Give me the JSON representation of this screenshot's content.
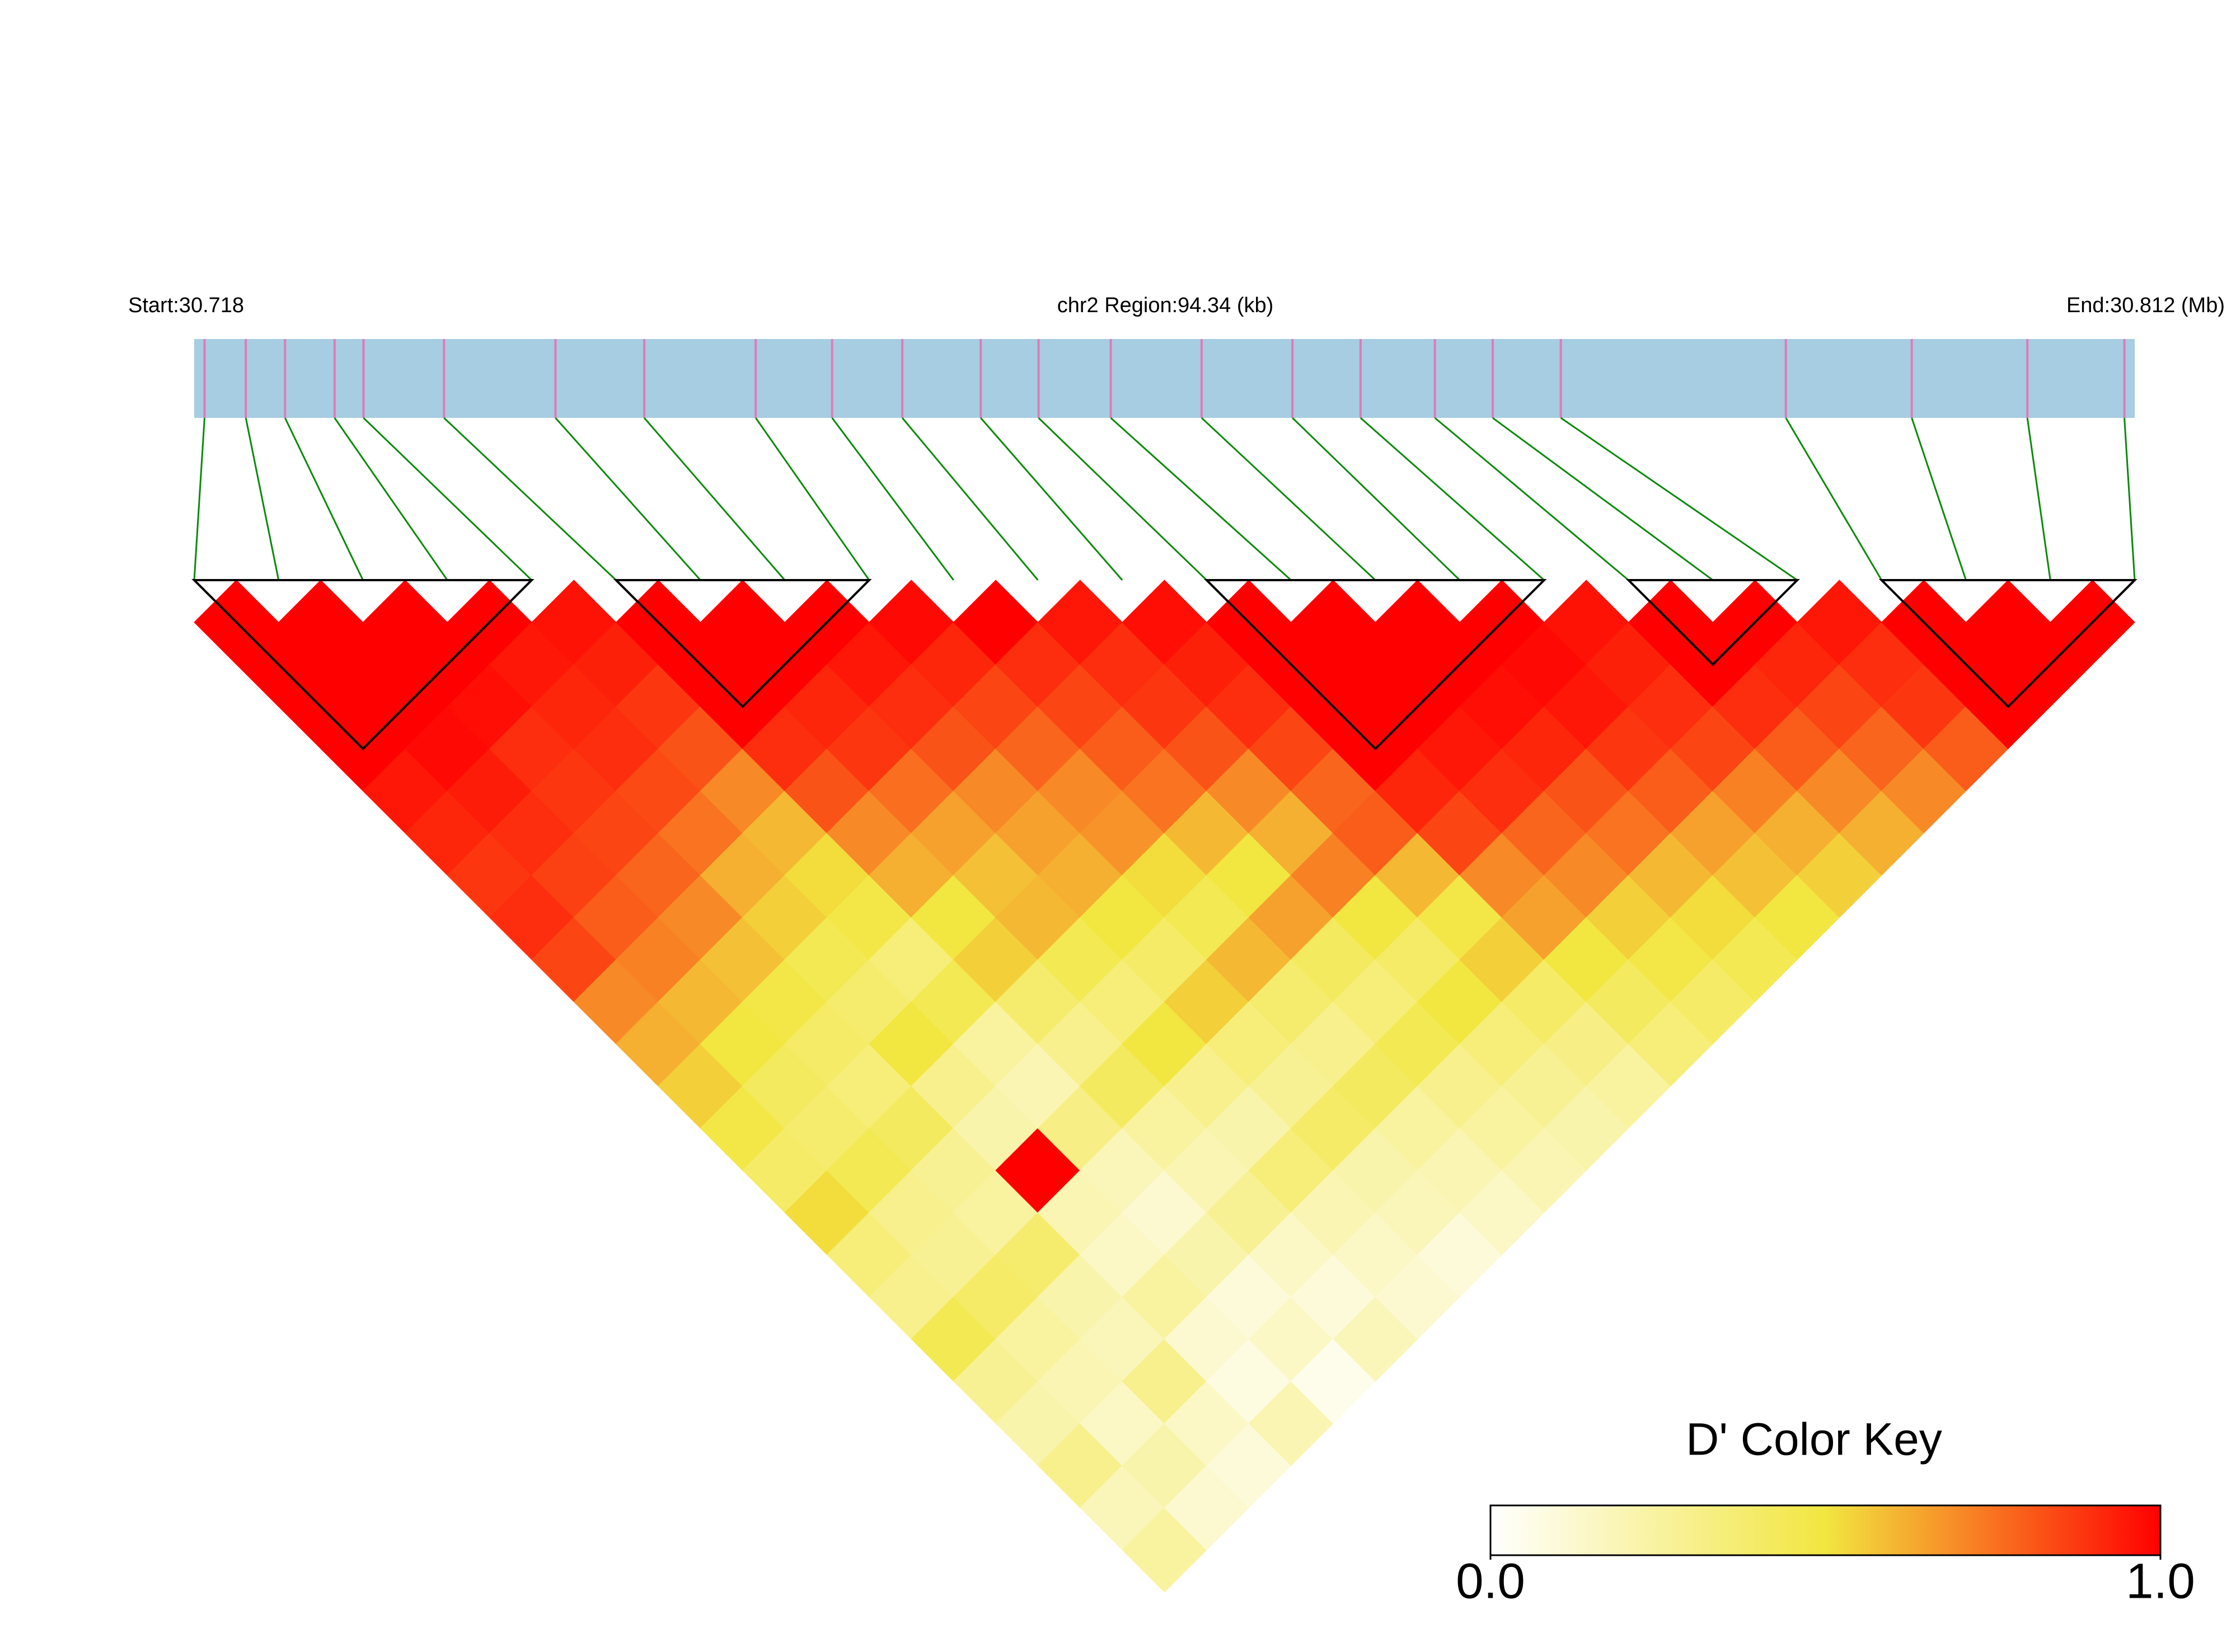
{
  "chart_data": {
    "type": "ld-heatmap",
    "start_label": "Start:30.718",
    "region_label": "chr2 Region:94.34 (kb)",
    "end_label": "End:30.812 (Mb)",
    "xlim": [
      30.718,
      30.812
    ],
    "snp_color": "#e07ab8",
    "track_color": "#a6cde2",
    "connector_color": "#0a8a0a",
    "block_color": "#000000",
    "snp_positions": [
      30.7185,
      30.7205,
      30.7224,
      30.7248,
      30.7262,
      30.7301,
      30.7355,
      30.7398,
      30.7452,
      30.7489,
      30.7523,
      30.7561,
      30.7589,
      30.7624,
      30.7668,
      30.7712,
      30.7745,
      30.7781,
      30.7809,
      30.7842,
      30.7951,
      30.8012,
      30.8068,
      30.8115
    ],
    "dprime": [
      [
        1,
        1,
        1,
        1,
        0.95,
        0.92,
        0.88,
        0.9,
        0.85,
        0.7,
        0.62,
        0.55,
        0.48,
        0.4,
        0.52,
        0.35,
        0.3,
        0.45,
        0.28,
        0.22,
        0.3,
        0.18,
        0.25
      ],
      [
        1,
        1,
        1,
        0.98,
        0.94,
        0.9,
        0.86,
        0.8,
        0.72,
        0.6,
        0.5,
        0.42,
        0.38,
        0.45,
        0.3,
        0.28,
        0.4,
        0.25,
        0.2,
        0.15,
        0.22,
        0.12
      ],
      [
        1,
        1,
        0.97,
        0.9,
        0.88,
        0.85,
        0.78,
        0.7,
        0.58,
        0.48,
        0.4,
        0.35,
        0.42,
        0.28,
        0.25,
        0.38,
        0.22,
        0.18,
        0.3,
        0.15,
        0.1
      ],
      [
        1,
        0.95,
        0.92,
        0.9,
        0.84,
        0.75,
        0.62,
        0.55,
        0.45,
        0.38,
        0.5,
        0.3,
        0.22,
        1,
        0.2,
        0.15,
        0.25,
        0.12,
        0.08,
        0.2
      ],
      [
        0.96,
        0.93,
        0.88,
        0.82,
        0.7,
        0.6,
        0.52,
        0.48,
        0.35,
        0.45,
        0.25,
        0.2,
        0.32,
        0.18,
        0.12,
        0.22,
        0.1,
        0.15,
        0.05
      ],
      [
        1,
        1,
        1,
        0.9,
        0.82,
        0.7,
        0.62,
        0.5,
        0.55,
        0.38,
        0.3,
        0.42,
        0.25,
        0.2,
        0.28,
        0.15,
        0.1,
        0.18
      ],
      [
        1,
        1,
        0.92,
        0.88,
        0.76,
        0.65,
        0.58,
        0.6,
        0.45,
        0.35,
        0.5,
        0.3,
        0.22,
        0.35,
        0.2,
        0.15,
        0.12
      ],
      [
        1,
        0.95,
        0.9,
        0.82,
        0.7,
        0.65,
        0.62,
        0.5,
        0.4,
        0.55,
        0.35,
        0.28,
        0.4,
        0.22,
        0.18,
        0.1
      ],
      [
        0.98,
        0.92,
        0.85,
        0.78,
        0.7,
        0.68,
        0.52,
        0.45,
        0.6,
        0.38,
        0.3,
        0.42,
        0.25,
        0.2,
        0.15
      ],
      [
        1,
        0.9,
        0.85,
        0.8,
        0.75,
        0.6,
        0.5,
        0.65,
        0.42,
        0.35,
        0.45,
        0.3,
        0.25,
        0.2
      ],
      [
        0.95,
        0.9,
        0.88,
        0.82,
        0.7,
        0.62,
        0.72,
        0.5,
        0.4,
        0.5,
        0.35,
        0.28,
        0.22
      ],
      [
        0.97,
        0.93,
        0.9,
        0.85,
        0.78,
        0.8,
        0.6,
        0.48,
        0.55,
        0.4,
        0.32,
        0.25
      ],
      [
        1,
        1,
        1,
        1,
        0.92,
        0.85,
        0.7,
        0.65,
        0.5,
        0.42,
        0.35
      ],
      [
        1,
        1,
        1,
        0.95,
        0.9,
        0.78,
        0.7,
        0.55,
        0.48,
        0.4
      ],
      [
        1,
        1,
        0.97,
        0.92,
        0.82,
        0.75,
        0.6,
        0.52,
        0.45
      ],
      [
        1,
        0.98,
        0.95,
        0.88,
        0.8,
        0.65,
        0.58,
        0.5
      ],
      [
        0.96,
        0.93,
        0.9,
        0.85,
        0.72,
        0.62,
        0.55
      ],
      [
        1,
        1,
        0.9,
        0.8,
        0.7,
        0.62
      ],
      [
        1,
        0.92,
        0.85,
        0.78,
        0.7
      ],
      [
        0.95,
        0.9,
        0.88,
        0.8
      ],
      [
        1,
        1,
        1
      ],
      [
        1,
        1
      ],
      [
        1
      ]
    ],
    "blocks": [
      [
        0,
        4
      ],
      [
        5,
        8
      ],
      [
        12,
        16
      ],
      [
        17,
        19
      ],
      [
        20,
        23
      ]
    ],
    "colormap": [
      "#ffffff",
      "#f2e640",
      "#ff0000"
    ],
    "key_title": "D' Color Key",
    "key_lim": [
      0,
      1
    ],
    "key_ticks": [
      {
        "value": 0,
        "label": "0.0"
      },
      {
        "value": 1,
        "label": "1.0"
      }
    ]
  }
}
